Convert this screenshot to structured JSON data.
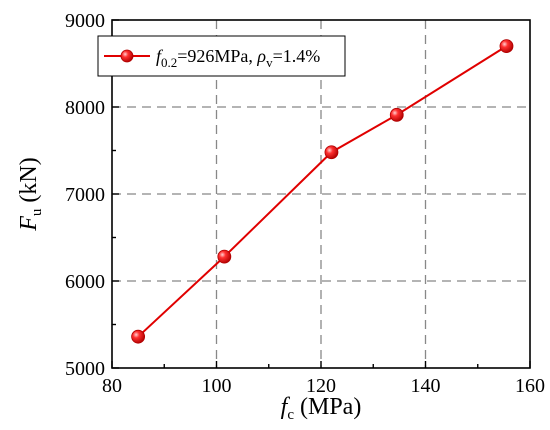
{
  "chart_data": {
    "type": "line",
    "x": [
      85,
      101.5,
      122,
      134.5,
      155.5
    ],
    "series": [
      {
        "name": "f0.2=926MPa, ρv=1.4%",
        "values": [
          5360,
          6280,
          7480,
          7910,
          8700
        ]
      }
    ],
    "xlim": [
      80,
      160
    ],
    "ylim": [
      5000,
      9000
    ],
    "xticks": [
      80,
      100,
      120,
      140,
      160
    ],
    "yticks": [
      5000,
      6000,
      7000,
      8000,
      9000
    ],
    "xlabel": {
      "main": "f",
      "sub": "c",
      "unit": " (MPa)"
    },
    "ylabel": {
      "main": "F",
      "sub": "u",
      "unit": " (kN)"
    },
    "legend": {
      "f": "f",
      "f_sub": "0.2",
      "f_text": "=926MPa, ",
      "rho": "ρ",
      "rho_sub": "v",
      "rho_text": "=1.4%",
      "placement": "top-left"
    },
    "grid": true,
    "grid_style": "dashed",
    "colors": {
      "series": "#e00000",
      "grid": "#888888",
      "axis": "#000000"
    }
  }
}
